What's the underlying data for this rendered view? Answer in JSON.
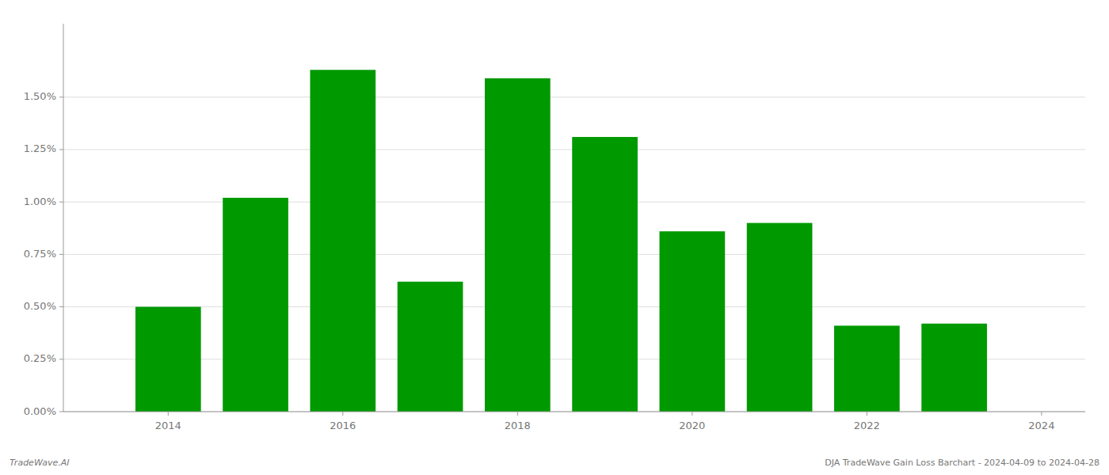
{
  "chart_data": {
    "type": "bar",
    "x": [
      2014,
      2015,
      2016,
      2017,
      2018,
      2019,
      2020,
      2021,
      2022,
      2023
    ],
    "values": [
      0.005,
      0.0102,
      0.0163,
      0.0062,
      0.0159,
      0.0131,
      0.0086,
      0.009,
      0.0041,
      0.0042
    ],
    "color": "#009900",
    "xlim": [
      2012.8,
      2024.5
    ],
    "xticks": [
      2014,
      2016,
      2018,
      2020,
      2022,
      2024
    ],
    "ylim": [
      0,
      0.0185
    ],
    "yticks": [
      {
        "value": 0.0,
        "label": "0.00%"
      },
      {
        "value": 0.0025,
        "label": "0.25%"
      },
      {
        "value": 0.005,
        "label": "0.50%"
      },
      {
        "value": 0.0075,
        "label": "0.75%"
      },
      {
        "value": 0.01,
        "label": "1.00%"
      },
      {
        "value": 0.0125,
        "label": "1.25%"
      },
      {
        "value": 0.015,
        "label": "1.50%"
      }
    ],
    "grid": true,
    "annotations": [
      "TradeWave.AI",
      "DJA TradeWave Gain Loss Barchart - 2024-04-09 to 2024-04-28"
    ]
  }
}
